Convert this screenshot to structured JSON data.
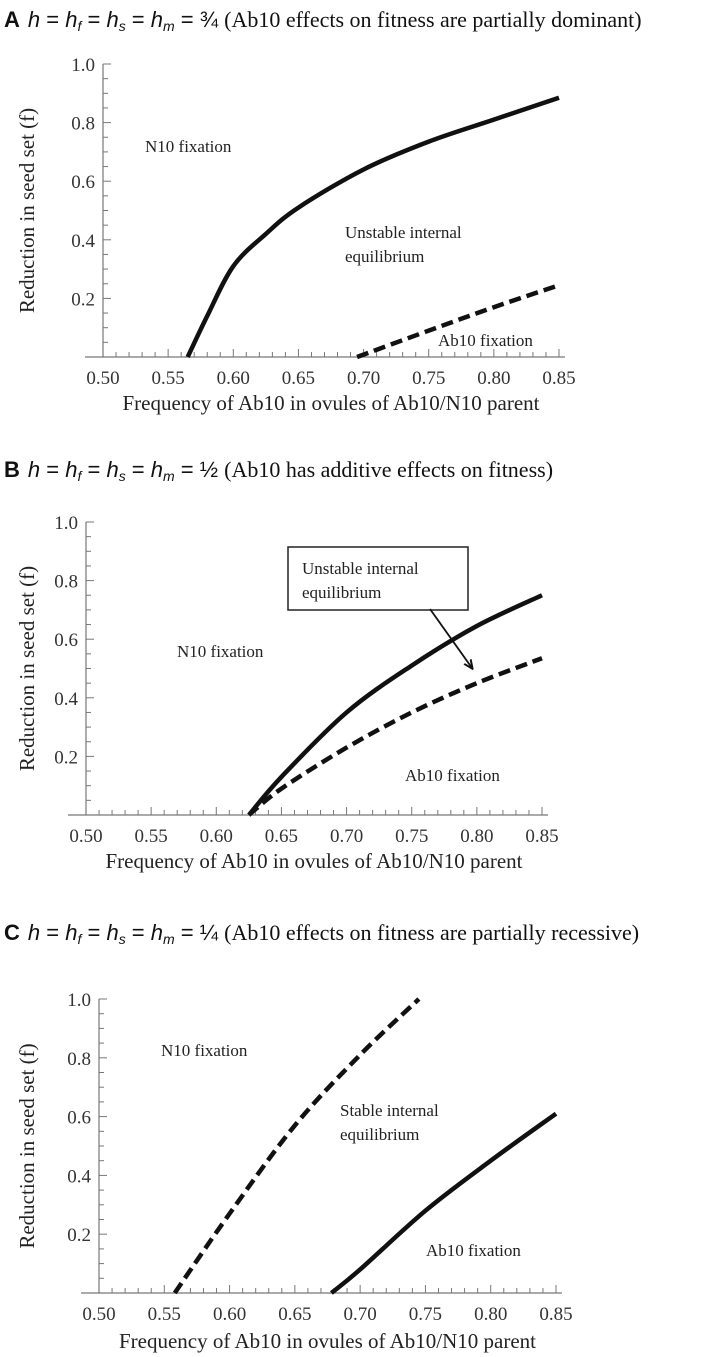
{
  "chart_data": [
    {
      "type": "line",
      "title": {
        "label": "A",
        "symbol": "h",
        "subscripts": [
          "f",
          "s",
          "m"
        ],
        "value": "¾",
        "description": "(Ab10 effects on fitness are partially dominant)"
      },
      "xlabel": "Frequency of Ab10 in ovules of Ab10/N10 parent",
      "ylabel": "Reduction in seed set (f)",
      "xlim": [
        0.5,
        0.85
      ],
      "ylim": [
        0,
        1.0
      ],
      "xticks": [
        "0.50",
        "0.55",
        "0.60",
        "0.65",
        "0.70",
        "0.75",
        "0.80",
        "0.85"
      ],
      "yticks": [
        "0.2",
        "0.4",
        "0.6",
        "0.8",
        "1.0"
      ],
      "series": [
        {
          "style": "solid",
          "x": [
            0.565,
            0.58,
            0.6,
            0.625,
            0.65,
            0.7,
            0.75,
            0.8,
            0.85
          ],
          "y": [
            0,
            0.14,
            0.31,
            0.42,
            0.51,
            0.64,
            0.735,
            0.81,
            0.885
          ]
        },
        {
          "style": "dashed",
          "x": [
            0.695,
            0.75,
            0.8,
            0.85
          ],
          "y": [
            0,
            0.09,
            0.17,
            0.245
          ]
        }
      ],
      "annotations": [
        {
          "text": "N10 fixation"
        },
        {
          "text": "Unstable internal"
        },
        {
          "text": "equilibrium"
        },
        {
          "text": "Ab10 fixation"
        }
      ]
    },
    {
      "type": "line",
      "title": {
        "label": "B",
        "symbol": "h",
        "subscripts": [
          "f",
          "s",
          "m"
        ],
        "value": "½",
        "description": "(Ab10 has additive effects on fitness)"
      },
      "xlabel": "Frequency of Ab10 in ovules of Ab10/N10 parent",
      "ylabel": "Reduction in seed set (f)",
      "xlim": [
        0.5,
        0.85
      ],
      "ylim": [
        0,
        1.0
      ],
      "xticks": [
        "0.50",
        "0.55",
        "0.60",
        "0.65",
        "0.70",
        "0.75",
        "0.80",
        "0.85"
      ],
      "yticks": [
        "0.2",
        "0.4",
        "0.6",
        "0.8",
        "1.0"
      ],
      "series": [
        {
          "style": "solid",
          "x": [
            0.625,
            0.65,
            0.7,
            0.75,
            0.8,
            0.85
          ],
          "y": [
            0,
            0.13,
            0.35,
            0.51,
            0.645,
            0.75
          ]
        },
        {
          "style": "dashed",
          "x": [
            0.625,
            0.65,
            0.7,
            0.75,
            0.8,
            0.85
          ],
          "y": [
            0,
            0.09,
            0.23,
            0.35,
            0.45,
            0.535
          ]
        }
      ],
      "annotations": [
        {
          "text": "N10 fixation"
        },
        {
          "text": "Unstable internal",
          "boxed": true
        },
        {
          "text": "equilibrium",
          "boxed": true
        },
        {
          "text": "Ab10 fixation"
        }
      ]
    },
    {
      "type": "line",
      "title": {
        "label": "C",
        "symbol": "h",
        "subscripts": [
          "f",
          "s",
          "m"
        ],
        "value": "¼",
        "description": "(Ab10 effects on fitness are partially recessive)"
      },
      "xlabel": "Frequency of Ab10 in ovules of Ab10/N10 parent",
      "ylabel": "Reduction in seed set (f)",
      "xlim": [
        0.5,
        0.85
      ],
      "ylim": [
        0,
        1.0
      ],
      "xticks": [
        "0.50",
        "0.55",
        "0.60",
        "0.65",
        "0.70",
        "0.75",
        "0.80",
        "0.85"
      ],
      "yticks": [
        "0.2",
        "0.4",
        "0.6",
        "0.8",
        "1.0"
      ],
      "series": [
        {
          "style": "dashed",
          "x": [
            0.558,
            0.6,
            0.65,
            0.7,
            0.745
          ],
          "y": [
            0,
            0.27,
            0.57,
            0.81,
            1.0
          ]
        },
        {
          "style": "solid",
          "x": [
            0.678,
            0.7,
            0.75,
            0.8,
            0.85
          ],
          "y": [
            0,
            0.08,
            0.28,
            0.45,
            0.61
          ]
        }
      ],
      "annotations": [
        {
          "text": "N10 fixation"
        },
        {
          "text": "Stable internal"
        },
        {
          "text": "equilibrium"
        },
        {
          "text": "Ab10 fixation"
        }
      ]
    }
  ]
}
